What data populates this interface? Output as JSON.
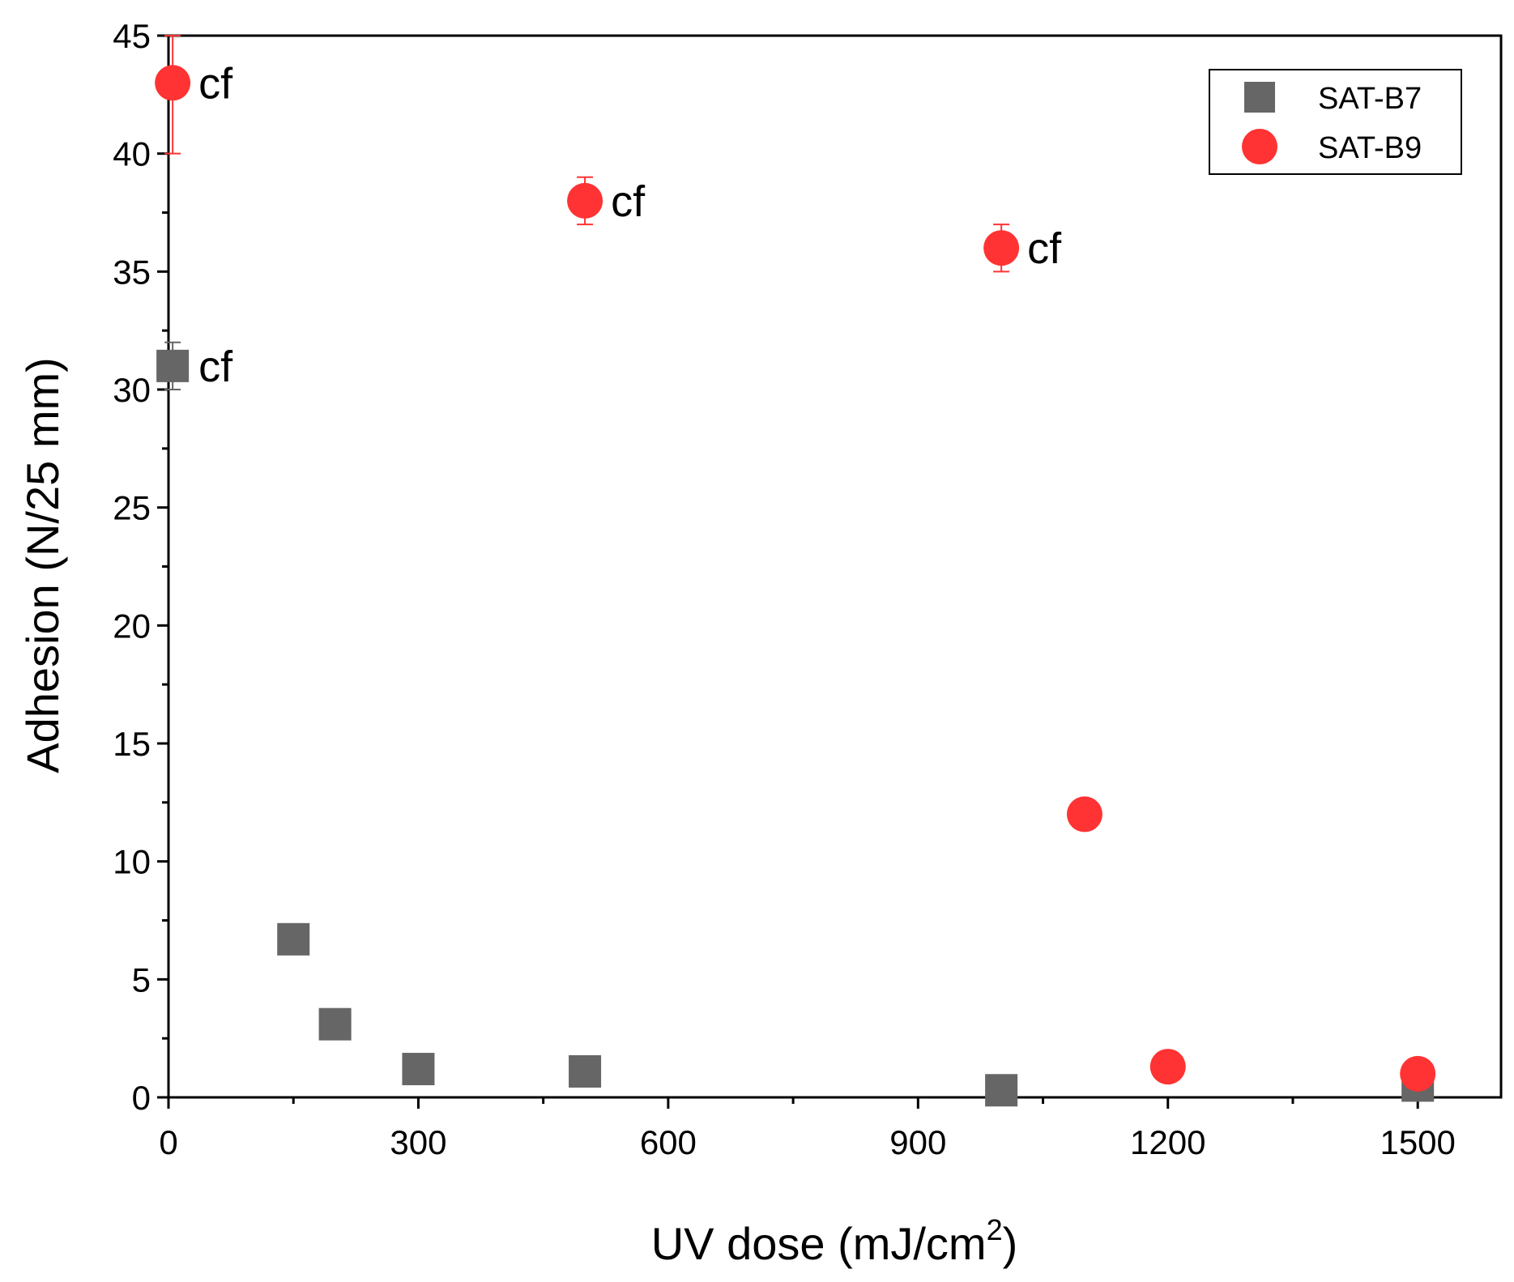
{
  "chart_data": {
    "type": "scatter",
    "title": "",
    "xlabel_main": "UV dose (mJ/cm",
    "xlabel_sup": "2",
    "xlabel_end": ")",
    "ylabel": "Adhesion (N/25 mm)",
    "xlim": [
      0,
      1600
    ],
    "ylim": [
      0,
      45
    ],
    "xticks": [
      0,
      300,
      600,
      900,
      1200,
      1500
    ],
    "xtick_labels": [
      "0",
      "300",
      "600",
      "900",
      "1200",
      "1500"
    ],
    "yticks": [
      0,
      5,
      10,
      15,
      20,
      25,
      30,
      35,
      40,
      45
    ],
    "ytick_labels": [
      "0",
      "5",
      "10",
      "15",
      "20",
      "25",
      "30",
      "35",
      "40",
      "45"
    ],
    "legend_position": "top-right",
    "series": [
      {
        "name": "SAT-B7",
        "marker": "square",
        "color": "#666666",
        "points": [
          {
            "x": 5,
            "y": 31,
            "err": 1,
            "label": "cf"
          },
          {
            "x": 150,
            "y": 6.7
          },
          {
            "x": 200,
            "y": 3.1
          },
          {
            "x": 300,
            "y": 1.2
          },
          {
            "x": 500,
            "y": 1.1
          },
          {
            "x": 1000,
            "y": 0.3
          },
          {
            "x": 1500,
            "y": 0.5
          }
        ]
      },
      {
        "name": "SAT-B9",
        "marker": "circle",
        "color": "#ff3333",
        "points": [
          {
            "x": 5,
            "y": 43,
            "err": 3,
            "label": "cf"
          },
          {
            "x": 500,
            "y": 38,
            "err": 1,
            "label": "cf"
          },
          {
            "x": 1000,
            "y": 36,
            "err": 1,
            "label": "cf"
          },
          {
            "x": 1100,
            "y": 12
          },
          {
            "x": 1200,
            "y": 1.3
          },
          {
            "x": 1500,
            "y": 1.0
          }
        ]
      }
    ]
  }
}
